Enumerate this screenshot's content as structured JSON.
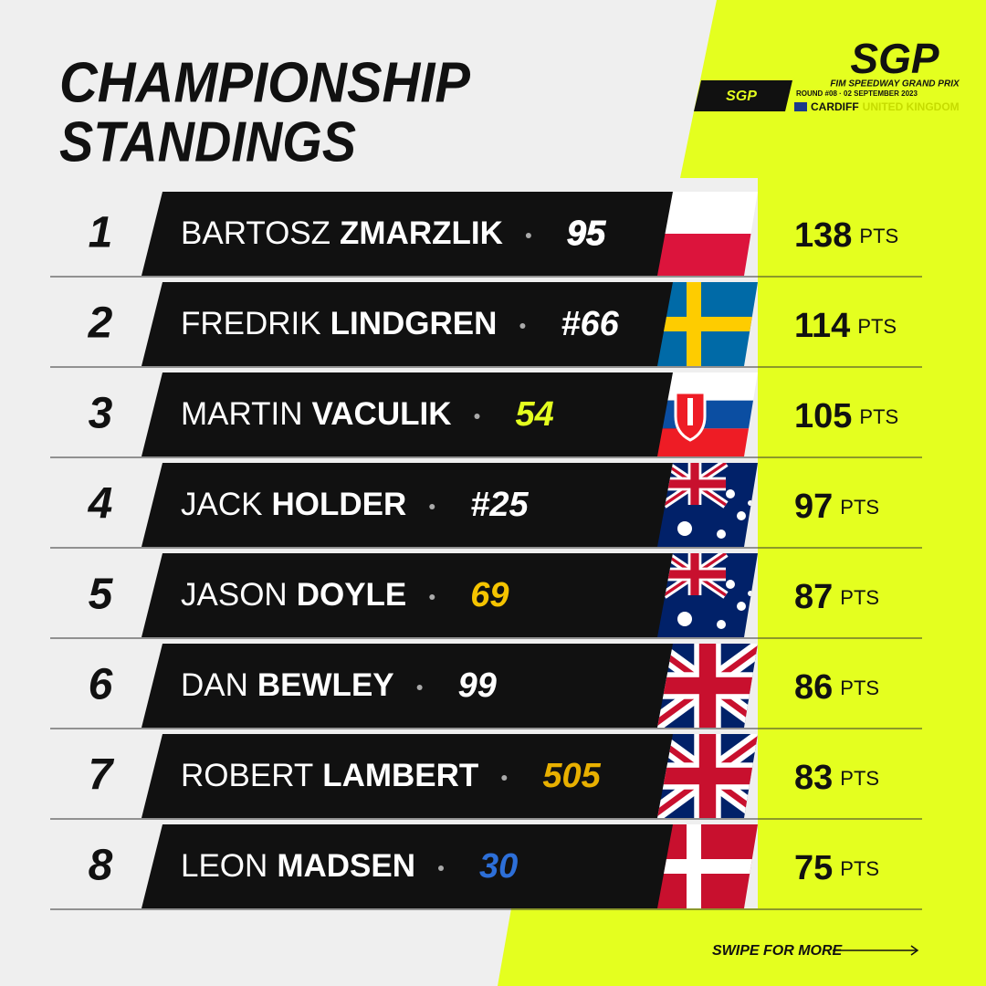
{
  "title": [
    "CHAMPIONSHIP",
    "STANDINGS"
  ],
  "header": {
    "logo": "SGP",
    "subtitle": "FIM SPEEDWAY GRAND PRIX",
    "badge": "SGP",
    "round": "ROUND #08 · 02 SEPTEMBER 2023",
    "city": "CARDIFF",
    "country": "UNITED KINGDOM"
  },
  "rows": [
    {
      "rank": "1",
      "first": "BARTOSZ",
      "last": "ZMARZLIK",
      "number": "95",
      "points": "138",
      "unit": "PTS"
    },
    {
      "rank": "2",
      "first": "FREDRIK",
      "last": "LINDGREN",
      "number": "#66",
      "points": "114",
      "unit": "PTS"
    },
    {
      "rank": "3",
      "first": "MARTIN",
      "last": "VACULIK",
      "number": "54",
      "points": "105",
      "unit": "PTS"
    },
    {
      "rank": "4",
      "first": "JACK",
      "last": "HOLDER",
      "number": "#25",
      "points": "97",
      "unit": "PTS"
    },
    {
      "rank": "5",
      "first": "JASON",
      "last": "DOYLE",
      "number": "69",
      "points": "87",
      "unit": "PTS"
    },
    {
      "rank": "6",
      "first": "DAN",
      "last": "BEWLEY",
      "number": "99",
      "points": "86",
      "unit": "PTS"
    },
    {
      "rank": "7",
      "first": "ROBERT",
      "last": "LAMBERT",
      "number": "505",
      "points": "83",
      "unit": "PTS"
    },
    {
      "rank": "8",
      "first": "LEON",
      "last": "MADSEN",
      "number": "30",
      "points": "75",
      "unit": "PTS"
    }
  ],
  "footer": "SWIPE FOR MORE"
}
